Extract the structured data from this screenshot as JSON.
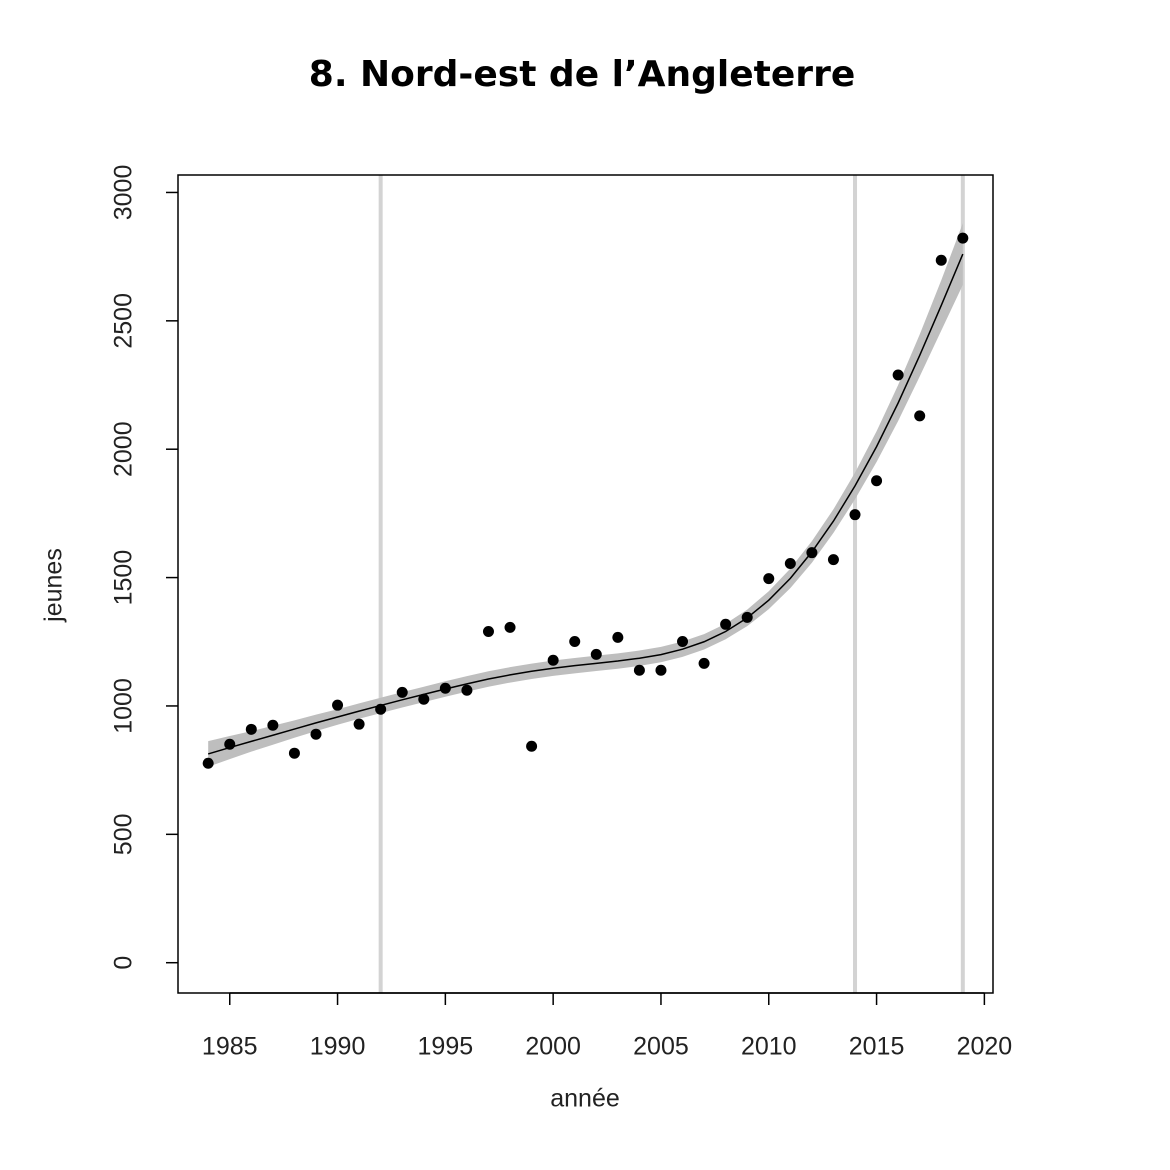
{
  "chart_data": {
    "type": "scatter",
    "title": "8. Nord-est de l’Angleterre",
    "x_label": "année",
    "y_label": "jeunes",
    "x": [
      1984,
      1985,
      1986,
      1987,
      1988,
      1989,
      1990,
      1991,
      1992,
      1993,
      1994,
      1995,
      1996,
      1997,
      1998,
      1999,
      2000,
      2001,
      2002,
      2003,
      2004,
      2005,
      2006,
      2007,
      2008,
      2009,
      2010,
      2011,
      2012,
      2013,
      2014,
      2015,
      2016,
      2017,
      2018,
      2019
    ],
    "values": [
      777,
      851,
      909,
      925,
      816,
      890,
      1003,
      929,
      987,
      1053,
      1026,
      1069,
      1061,
      1290,
      1306,
      843,
      1178,
      1251,
      1201,
      1267,
      1139,
      1139,
      1251,
      1166,
      1318,
      1345,
      1496,
      1555,
      1597,
      1570,
      1745,
      1877,
      2289,
      2130,
      2736,
      2822
    ],
    "fit": [
      813,
      838,
      862,
      886,
      910,
      934,
      957,
      980,
      1002,
      1024,
      1045,
      1066,
      1086,
      1105,
      1121,
      1135,
      1147,
      1157,
      1166,
      1175,
      1186,
      1200,
      1221,
      1250,
      1290,
      1343,
      1412,
      1497,
      1600,
      1720,
      1857,
      2010,
      2180,
      2365,
      2560,
      2760
    ],
    "lower": [
      763,
      793,
      822,
      849,
      876,
      902,
      927,
      950,
      972,
      994,
      1015,
      1036,
      1056,
      1075,
      1091,
      1105,
      1117,
      1127,
      1136,
      1145,
      1156,
      1170,
      1191,
      1220,
      1260,
      1311,
      1377,
      1459,
      1558,
      1674,
      1805,
      1950,
      2110,
      2283,
      2462,
      2640
    ],
    "upper": [
      863,
      883,
      902,
      923,
      944,
      966,
      987,
      1010,
      1032,
      1054,
      1075,
      1096,
      1116,
      1135,
      1151,
      1165,
      1177,
      1187,
      1196,
      1205,
      1216,
      1230,
      1251,
      1280,
      1320,
      1375,
      1447,
      1535,
      1642,
      1766,
      1909,
      2070,
      2250,
      2447,
      2658,
      2880
    ],
    "point_color": "#000000",
    "line_color": "#000000",
    "band_color": "#bebebe",
    "vlines": [
      1992,
      2014,
      2019
    ],
    "vline_color": "#d3d3d3",
    "xlim": [
      1982.6,
      2020.4
    ],
    "ylim": [
      -118,
      3068
    ],
    "xticks": [
      1985,
      1990,
      1995,
      2000,
      2005,
      2010,
      2015,
      2020
    ],
    "yticks": [
      0,
      500,
      1000,
      1500,
      2000,
      2500,
      3000
    ]
  }
}
